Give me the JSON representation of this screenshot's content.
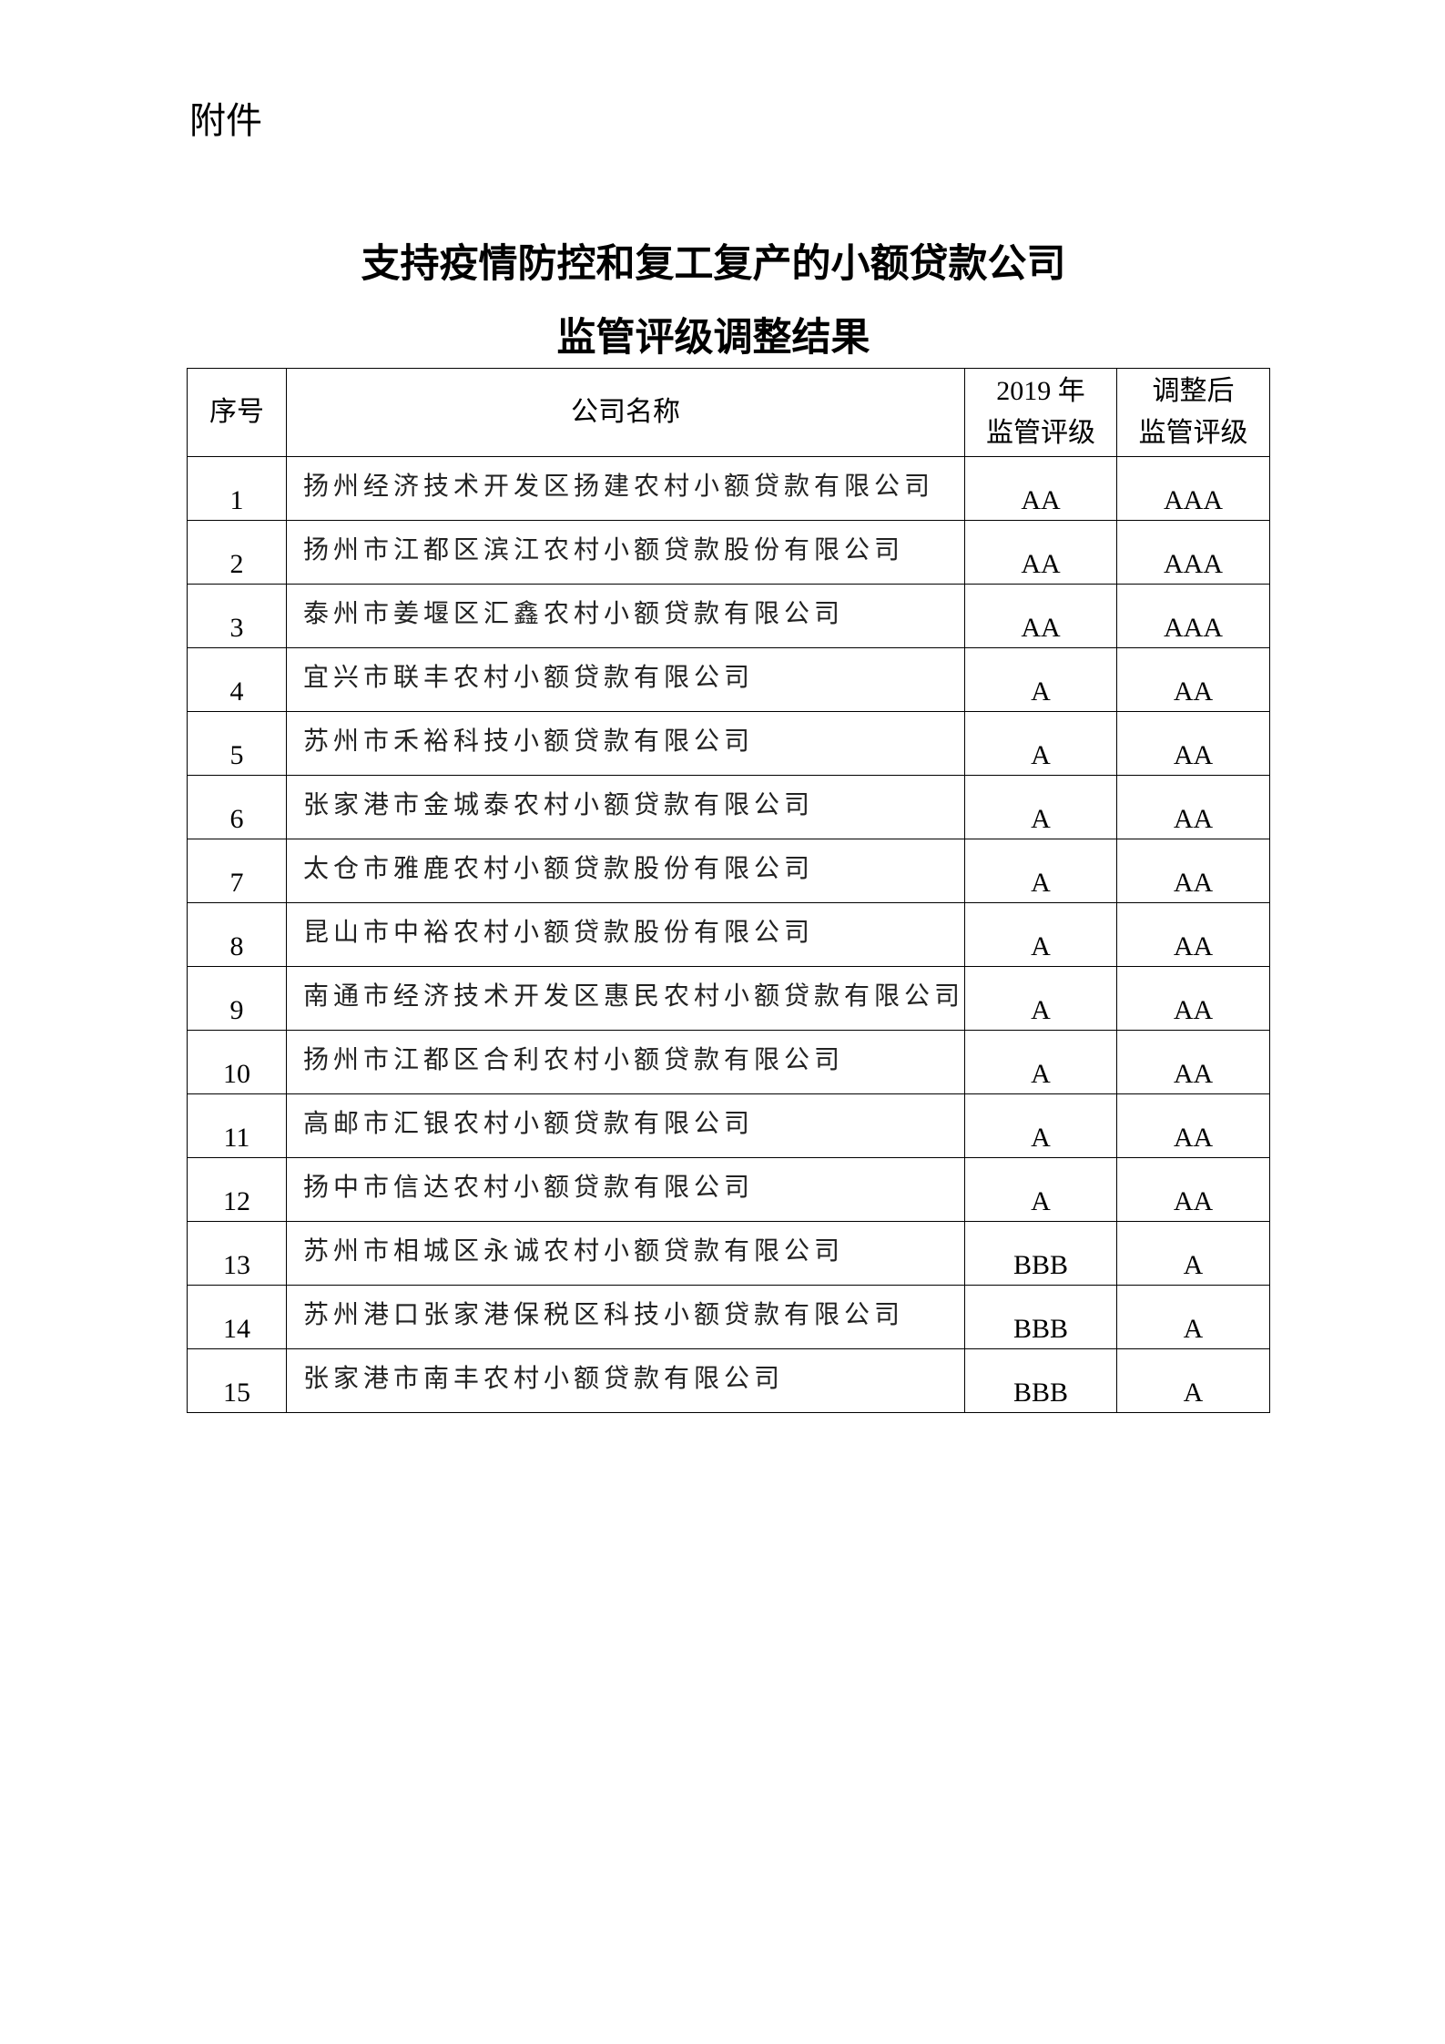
{
  "attachment_label": "附件",
  "title_line1": "支持疫情防控和复工复产的小额贷款公司",
  "title_line2": "监管评级调整结果",
  "table": {
    "headers": {
      "index": "序号",
      "company": "公司名称",
      "rating_2019_year": "2019 年",
      "rating_2019_label": "监管评级",
      "rating_adjusted_top": "调整后",
      "rating_adjusted_label": "监管评级"
    },
    "rows": [
      {
        "no": "1",
        "name": "扬州经济技术开发区扬建农村小额贷款有限公司",
        "r2019": "AA",
        "adjusted": "AAA"
      },
      {
        "no": "2",
        "name": "扬州市江都区滨江农村小额贷款股份有限公司",
        "r2019": "AA",
        "adjusted": "AAA"
      },
      {
        "no": "3",
        "name": "泰州市姜堰区汇鑫农村小额贷款有限公司",
        "r2019": "AA",
        "adjusted": "AAA"
      },
      {
        "no": "4",
        "name": "宜兴市联丰农村小额贷款有限公司",
        "r2019": "A",
        "adjusted": "AA"
      },
      {
        "no": "5",
        "name": "苏州市禾裕科技小额贷款有限公司",
        "r2019": "A",
        "adjusted": "AA"
      },
      {
        "no": "6",
        "name": "张家港市金城泰农村小额贷款有限公司",
        "r2019": "A",
        "adjusted": "AA"
      },
      {
        "no": "7",
        "name": "太仓市雅鹿农村小额贷款股份有限公司",
        "r2019": "A",
        "adjusted": "AA"
      },
      {
        "no": "8",
        "name": "昆山市中裕农村小额贷款股份有限公司",
        "r2019": "A",
        "adjusted": "AA"
      },
      {
        "no": "9",
        "name": "南通市经济技术开发区惠民农村小额贷款有限公司",
        "r2019": "A",
        "adjusted": "AA"
      },
      {
        "no": "10",
        "name": "扬州市江都区合利农村小额贷款有限公司",
        "r2019": "A",
        "adjusted": "AA"
      },
      {
        "no": "11",
        "name": "高邮市汇银农村小额贷款有限公司",
        "r2019": "A",
        "adjusted": "AA"
      },
      {
        "no": "12",
        "name": "扬中市信达农村小额贷款有限公司",
        "r2019": "A",
        "adjusted": "AA"
      },
      {
        "no": "13",
        "name": "苏州市相城区永诚农村小额贷款有限公司",
        "r2019": "BBB",
        "adjusted": "A"
      },
      {
        "no": "14",
        "name": "苏州港口张家港保税区科技小额贷款有限公司",
        "r2019": "BBB",
        "adjusted": "A"
      },
      {
        "no": "15",
        "name": "张家港市南丰农村小额贷款有限公司",
        "r2019": "BBB",
        "adjusted": "A"
      }
    ]
  }
}
